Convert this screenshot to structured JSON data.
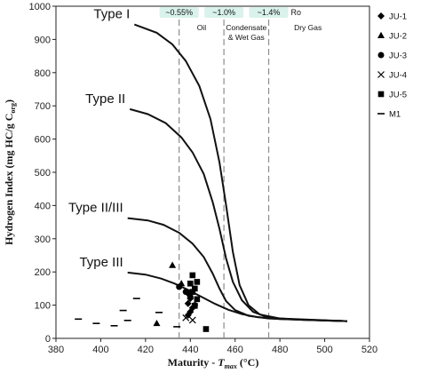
{
  "chart_data": {
    "type": "scatter",
    "xlim": [
      380,
      520
    ],
    "ylim": [
      0,
      1000
    ],
    "x_ticks": [
      "380",
      "400",
      "420",
      "440",
      "460",
      "480",
      "500",
      "520"
    ],
    "y_ticks": [
      "0",
      "100",
      "200",
      "300",
      "400",
      "500",
      "600",
      "700",
      "800",
      "900",
      "1000"
    ],
    "xlabel_main": "Maturity - ",
    "xlabel_var": "T",
    "xlabel_sub": "max",
    "xlabel_unit": " (°C)",
    "ylabel_main": "Hydrogen Index (mg HC/g C",
    "ylabel_sub": "org",
    "ylabel_end": ")",
    "grid": false,
    "legend_position": "right, outside plot",
    "boundaries": [
      {
        "x": 435,
        "ro_label": "~0.55%"
      },
      {
        "x": 455,
        "ro_label": "~1.0%"
      },
      {
        "x": 475,
        "ro_label": "~1.4%"
      }
    ],
    "ro_suffix": "Ro",
    "zones": [
      {
        "label_lines": [
          "Oil"
        ],
        "x_from": 435,
        "x_to": 455
      },
      {
        "label_lines": [
          "Condensate",
          "& Wet Gas"
        ],
        "x_from": 455,
        "x_to": 475
      },
      {
        "label_lines": [
          "Dry Gas"
        ],
        "x_from": 475,
        "x_to": 510
      }
    ],
    "curves": [
      {
        "name": "Type I",
        "points": [
          [
            415,
            945
          ],
          [
            425,
            920
          ],
          [
            432,
            885
          ],
          [
            438,
            835
          ],
          [
            444,
            760
          ],
          [
            449,
            660
          ],
          [
            453,
            530
          ],
          [
            456,
            400
          ],
          [
            459,
            260
          ],
          [
            462,
            160
          ],
          [
            466,
            100
          ],
          [
            471,
            72
          ],
          [
            480,
            60
          ],
          [
            510,
            52
          ]
        ]
      },
      {
        "name": "Type II",
        "points": [
          [
            413,
            690
          ],
          [
            421,
            675
          ],
          [
            429,
            648
          ],
          [
            436,
            605
          ],
          [
            441,
            560
          ],
          [
            446,
            495
          ],
          [
            450,
            410
          ],
          [
            453,
            330
          ],
          [
            456,
            240
          ],
          [
            459,
            170
          ],
          [
            463,
            115
          ],
          [
            468,
            80
          ],
          [
            475,
            62
          ],
          [
            490,
            56
          ],
          [
            510,
            52
          ]
        ]
      },
      {
        "name": "Type II/III",
        "points": [
          [
            412,
            362
          ],
          [
            421,
            355
          ],
          [
            428,
            342
          ],
          [
            435,
            318
          ],
          [
            441,
            285
          ],
          [
            446,
            245
          ],
          [
            450,
            195
          ],
          [
            453,
            150
          ],
          [
            456,
            112
          ],
          [
            460,
            85
          ],
          [
            466,
            68
          ],
          [
            475,
            60
          ],
          [
            490,
            56
          ],
          [
            510,
            52
          ]
        ]
      },
      {
        "name": "Type III",
        "points": [
          [
            412,
            198
          ],
          [
            420,
            192
          ],
          [
            427,
            180
          ],
          [
            433,
            165
          ],
          [
            439,
            146
          ],
          [
            445,
            125
          ],
          [
            451,
            104
          ],
          [
            457,
            86
          ],
          [
            463,
            73
          ],
          [
            470,
            64
          ],
          [
            480,
            58
          ],
          [
            495,
            55
          ],
          [
            510,
            52
          ]
        ]
      }
    ],
    "series": [
      {
        "name": "JU-1",
        "marker": "diamond",
        "points": [
          [
            439,
            70
          ],
          [
            440,
            80
          ],
          [
            439,
            105
          ],
          [
            440,
            120
          ],
          [
            439,
            135
          ],
          [
            441,
            92
          ]
        ]
      },
      {
        "name": "JU-2",
        "marker": "triangle",
        "points": [
          [
            432,
            220
          ],
          [
            436,
            165
          ],
          [
            425,
            45
          ]
        ]
      },
      {
        "name": "JU-3",
        "marker": "circle",
        "points": [
          [
            435,
            155
          ],
          [
            438,
            140
          ],
          [
            440,
            125
          ],
          [
            442,
            100
          ]
        ]
      },
      {
        "name": "JU-4",
        "marker": "x",
        "points": [
          [
            438,
            62
          ],
          [
            441,
            55
          ]
        ]
      },
      {
        "name": "JU-5",
        "marker": "square",
        "points": [
          [
            441,
            190
          ],
          [
            443,
            170
          ],
          [
            442,
            150
          ],
          [
            440,
            165
          ],
          [
            441,
            140
          ],
          [
            443,
            118
          ],
          [
            442,
            98
          ],
          [
            447,
            28
          ]
        ]
      },
      {
        "name": "M1",
        "marker": "dash",
        "points": [
          [
            390,
            58
          ],
          [
            398,
            45
          ],
          [
            406,
            38
          ],
          [
            410,
            84
          ],
          [
            412,
            54
          ],
          [
            416,
            120
          ],
          [
            426,
            78
          ],
          [
            434,
            35
          ]
        ]
      }
    ]
  }
}
